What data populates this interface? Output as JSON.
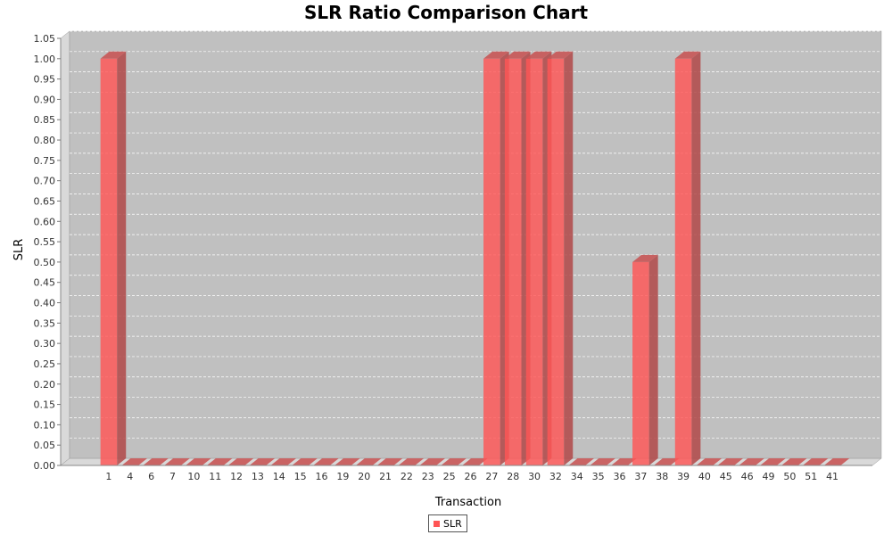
{
  "chart_data": {
    "type": "bar",
    "title": "SLR Ratio Comparison Chart",
    "xlabel": "Transaction",
    "ylabel": "SLR",
    "ylim": [
      0,
      1.05
    ],
    "ytick_step": 0.05,
    "grid": true,
    "legend_position": "bottom",
    "categories": [
      "1",
      "4",
      "6",
      "7",
      "10",
      "11",
      "12",
      "13",
      "14",
      "15",
      "16",
      "19",
      "20",
      "21",
      "22",
      "23",
      "25",
      "26",
      "27",
      "28",
      "30",
      "32",
      "34",
      "35",
      "36",
      "37",
      "38",
      "39",
      "40",
      "45",
      "46",
      "49",
      "50",
      "51",
      "41"
    ],
    "series": [
      {
        "name": "SLR",
        "color": "#ff5555",
        "values": [
          1,
          0,
          0,
          0,
          0,
          0,
          0,
          0,
          0,
          0,
          0,
          0,
          0,
          0,
          0,
          0,
          0,
          0,
          1,
          1,
          1,
          1,
          0,
          0,
          0,
          0.5,
          0,
          1,
          0,
          0,
          0,
          0,
          0,
          0,
          0
        ]
      }
    ]
  }
}
